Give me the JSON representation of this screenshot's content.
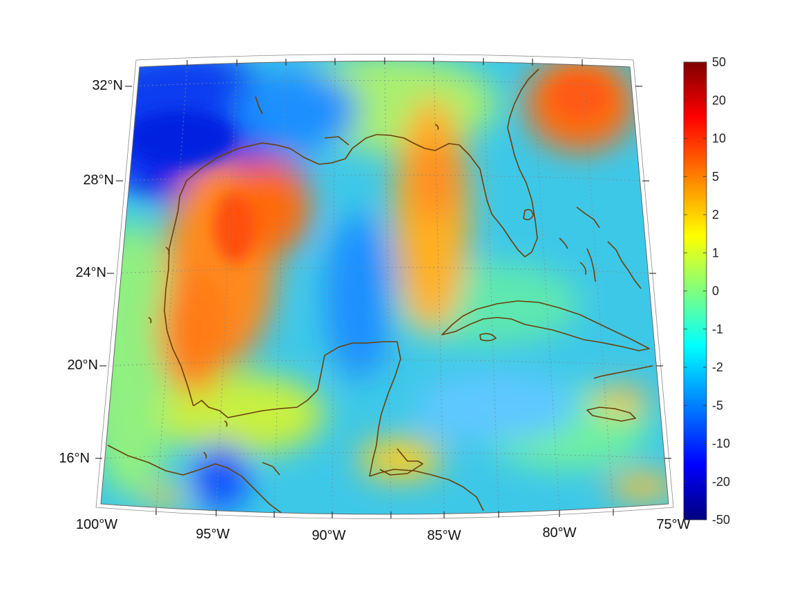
{
  "map": {
    "lat_labels": [
      "32°N",
      "28°N",
      "24°N",
      "20°N",
      "16°N"
    ],
    "lon_labels": [
      "100°W",
      "95°W",
      "90°W",
      "85°W",
      "80°W",
      "75°W"
    ],
    "coastline_color": "#6b3e08",
    "gridline_color": "#7d8a8a",
    "grid": true
  },
  "colorbar": {
    "labels": [
      "50",
      "20",
      "10",
      "5",
      "2",
      "1",
      "0",
      "-1",
      "-2",
      "-5",
      "-10",
      "-20",
      "-50"
    ],
    "colormap": "jet",
    "colors": [
      "#800000",
      "#ff0000",
      "#ff8000",
      "#ffff00",
      "#80ff80",
      "#00ffff",
      "#0080ff",
      "#0000ff",
      "#000080"
    ]
  }
}
